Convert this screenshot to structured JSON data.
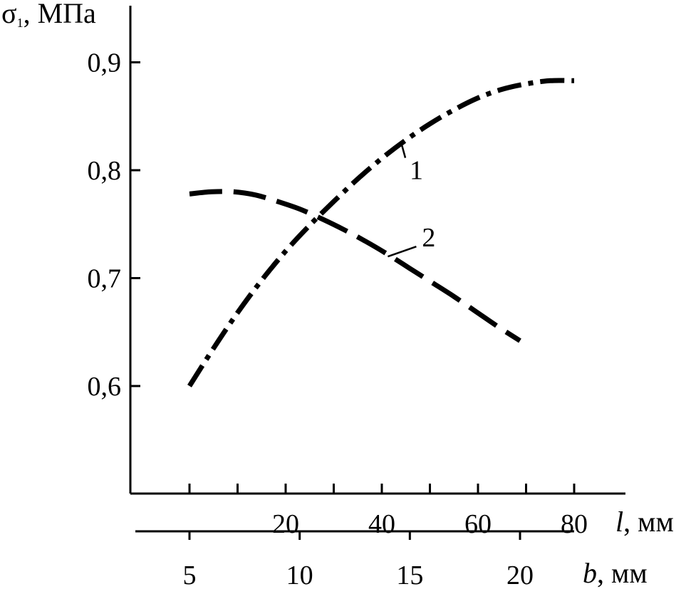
{
  "chart_data": {
    "type": "line",
    "ylabel": "σ",
    "ylabel_sub": "1",
    "ylabel_unit": ", МПа",
    "y_ticks": [
      {
        "value": 0.9,
        "label": "0,9"
      },
      {
        "value": 0.8,
        "label": "0,8"
      },
      {
        "value": 0.7,
        "label": "0,7"
      },
      {
        "value": 0.6,
        "label": "0,6"
      }
    ],
    "ylim": [
      0.5,
      0.96
    ],
    "x_axis_l": {
      "label": "l",
      "unit": ", мм",
      "range": [
        0,
        80
      ],
      "tick_values": [
        0,
        10,
        20,
        30,
        40,
        50,
        60,
        70,
        80
      ],
      "tick_labels": [
        {
          "value": 20,
          "label": "20"
        },
        {
          "value": 40,
          "label": "40"
        },
        {
          "value": 60,
          "label": "60"
        },
        {
          "value": 80,
          "label": "80"
        }
      ]
    },
    "x_axis_b": {
      "label": "b",
      "unit": ", мм",
      "range": [
        5,
        22.5
      ],
      "tick_values": [
        5,
        10,
        15,
        20
      ],
      "tick_labels": [
        {
          "value": 5,
          "label": "5"
        },
        {
          "value": 10,
          "label": "10"
        },
        {
          "value": 15,
          "label": "15"
        },
        {
          "value": 20,
          "label": "20"
        }
      ]
    },
    "series": [
      {
        "name": "1",
        "axis": "l",
        "style": "dash-dot",
        "x": [
          0,
          5,
          10,
          15,
          20,
          25,
          30,
          35,
          40,
          45,
          50,
          55,
          60,
          65,
          70,
          75,
          80
        ],
        "y": [
          0.6,
          0.635,
          0.668,
          0.698,
          0.725,
          0.749,
          0.771,
          0.792,
          0.811,
          0.828,
          0.843,
          0.856,
          0.867,
          0.875,
          0.88,
          0.883,
          0.883
        ],
        "label_at": [
          44,
          0.826
        ]
      },
      {
        "name": "2",
        "axis": "b",
        "style": "dash",
        "x": [
          5,
          6,
          7,
          8,
          9,
          10,
          11,
          12,
          13,
          14,
          15,
          16,
          17,
          18,
          19,
          20
        ],
        "y": [
          0.778,
          0.78,
          0.78,
          0.777,
          0.771,
          0.764,
          0.755,
          0.745,
          0.734,
          0.722,
          0.709,
          0.696,
          0.683,
          0.669,
          0.655,
          0.642
        ],
        "label_at": [
          14,
          0.72
        ]
      }
    ],
    "colors": {
      "line": "#000000",
      "axis": "#000000"
    },
    "grid": false
  }
}
